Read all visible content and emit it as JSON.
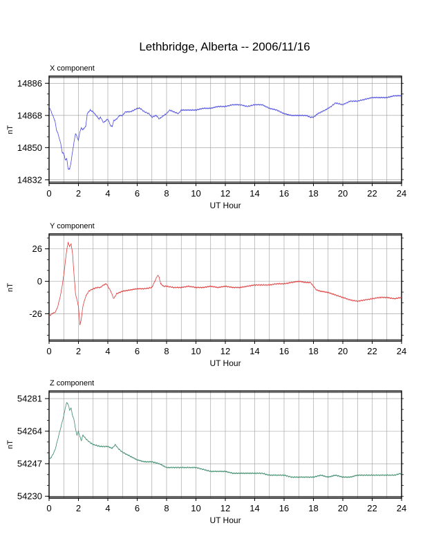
{
  "page": {
    "title": "Lethbridge, Alberta -- 2006/11/16"
  },
  "chart_data": [
    {
      "type": "line",
      "panel_label": "X component",
      "xlabel": "UT Hour",
      "ylabel": "nT",
      "xlim": [
        0,
        24
      ],
      "ylim": [
        14830,
        14890
      ],
      "xticks": [
        0,
        2,
        4,
        6,
        8,
        10,
        12,
        14,
        16,
        18,
        20,
        22,
        24
      ],
      "yticks": [
        14886,
        14868,
        14850,
        14832
      ],
      "grid": true,
      "color": "#4a4ae0",
      "series": [
        {
          "x": [
            0,
            0.2,
            0.4,
            0.5,
            0.6,
            0.8,
            0.9,
            1.0,
            1.1,
            1.2,
            1.3,
            1.4,
            1.5,
            1.6,
            1.7,
            1.8,
            1.9,
            2.0,
            2.1,
            2.2,
            2.3,
            2.5,
            2.6,
            2.8,
            3.0,
            3.2,
            3.4,
            3.5,
            3.7,
            4.0,
            4.2,
            4.3,
            4.4,
            4.6,
            4.8,
            5.0,
            5.2,
            5.5,
            5.8,
            6.0,
            6.2,
            6.5,
            6.8,
            7.0,
            7.3,
            7.5,
            7.8,
            8.0,
            8.2,
            8.5,
            8.8,
            9.0,
            9.5,
            10.0,
            10.5,
            11.0,
            11.5,
            12.0,
            12.5,
            13.0,
            13.5,
            14.0,
            14.5,
            15.0,
            15.5,
            16.0,
            16.5,
            17.0,
            17.5,
            17.8,
            18.0,
            18.3,
            18.8,
            19.2,
            19.5,
            20.0,
            20.5,
            21.0,
            21.5,
            22.0,
            22.5,
            23.0,
            23.5,
            24.0
          ],
          "y": [
            14873,
            14869,
            14865,
            14860,
            14858,
            14852,
            14847,
            14847,
            14843,
            14844,
            14838,
            14838,
            14842,
            14848,
            14853,
            14858,
            14856,
            14854,
            14859,
            14861,
            14860,
            14862,
            14869,
            14871,
            14870,
            14868,
            14866,
            14867,
            14864,
            14866,
            14862,
            14862,
            14865,
            14866,
            14868,
            14868,
            14870,
            14870,
            14871,
            14872,
            14872,
            14870,
            14869,
            14867,
            14868,
            14866,
            14868,
            14869,
            14871,
            14870,
            14869,
            14871,
            14871,
            14871,
            14872,
            14872,
            14873,
            14873,
            14874,
            14874,
            14873,
            14874,
            14874,
            14872,
            14871,
            14869,
            14868,
            14868,
            14868,
            14867,
            14867,
            14869,
            14871,
            14873,
            14875,
            14874,
            14876,
            14876,
            14877,
            14878,
            14878,
            14878,
            14879,
            14879
          ]
        }
      ]
    },
    {
      "type": "line",
      "panel_label": "Y component",
      "xlabel": "UT Hour",
      "ylabel": "nT",
      "xlim": [
        0,
        24
      ],
      "ylim": [
        -48,
        38
      ],
      "xticks": [
        0,
        2,
        4,
        6,
        8,
        10,
        12,
        14,
        16,
        18,
        20,
        22,
        24
      ],
      "yticks": [
        26,
        0,
        -26
      ],
      "grid": true,
      "color": "#e03a3a",
      "series": [
        {
          "x": [
            0,
            0.2,
            0.4,
            0.5,
            0.6,
            0.7,
            0.8,
            0.9,
            1.0,
            1.1,
            1.2,
            1.3,
            1.4,
            1.5,
            1.6,
            1.7,
            1.8,
            1.9,
            2.0,
            2.1,
            2.2,
            2.3,
            2.5,
            2.7,
            3.0,
            3.3,
            3.5,
            3.7,
            3.9,
            4.0,
            4.2,
            4.4,
            4.6,
            4.8,
            5.0,
            5.5,
            6.0,
            6.5,
            7.0,
            7.2,
            7.4,
            7.5,
            7.6,
            7.8,
            8.0,
            8.5,
            9.0,
            9.5,
            10.0,
            10.5,
            11.0,
            11.5,
            12.0,
            12.5,
            13.0,
            13.5,
            14.0,
            14.5,
            15.0,
            15.5,
            16.0,
            16.5,
            17.0,
            17.5,
            17.8,
            18.0,
            18.2,
            18.5,
            19.0,
            19.5,
            20.0,
            20.5,
            21.0,
            21.5,
            22.0,
            22.5,
            23.0,
            23.5,
            24.0
          ],
          "y": [
            -28,
            -26,
            -25,
            -23,
            -20,
            -15,
            -10,
            -3,
            5,
            15,
            25,
            31,
            28,
            30,
            22,
            5,
            -10,
            -15,
            -20,
            -35,
            -30,
            -20,
            -12,
            -8,
            -6,
            -5,
            -5,
            -3,
            -2,
            -4,
            -8,
            -14,
            -10,
            -9,
            -8,
            -7,
            -6,
            -6,
            -5,
            0,
            5,
            3,
            -2,
            -4,
            -4,
            -5,
            -5,
            -4,
            -5,
            -5,
            -4,
            -5,
            -4,
            -5,
            -5,
            -4,
            -3,
            -3,
            -3,
            -2,
            -2,
            -1,
            0,
            -1,
            -1,
            -4,
            -7,
            -8,
            -9,
            -11,
            -13,
            -15,
            -16,
            -15,
            -14,
            -13,
            -13,
            -14,
            -13
          ]
        }
      ]
    },
    {
      "type": "line",
      "panel_label": "Z component",
      "xlabel": "UT Hour",
      "ylabel": "nT",
      "xlim": [
        0,
        24
      ],
      "ylim": [
        54229,
        54285
      ],
      "xticks": [
        0,
        2,
        4,
        6,
        8,
        10,
        12,
        14,
        16,
        18,
        20,
        22,
        24
      ],
      "yticks": [
        54281,
        54264,
        54247,
        54230
      ],
      "grid": true,
      "color": "#3a8a6a",
      "series": [
        {
          "x": [
            0,
            0.2,
            0.4,
            0.6,
            0.8,
            1.0,
            1.1,
            1.2,
            1.3,
            1.4,
            1.5,
            1.6,
            1.7,
            1.8,
            1.9,
            2.0,
            2.1,
            2.2,
            2.3,
            2.5,
            2.8,
            3.0,
            3.5,
            4.0,
            4.3,
            4.5,
            4.7,
            5.0,
            5.5,
            6.0,
            6.5,
            7.0,
            7.5,
            8.0,
            8.5,
            9.0,
            9.5,
            10.0,
            10.5,
            11.0,
            11.5,
            12.0,
            12.5,
            13.0,
            13.5,
            14.0,
            14.5,
            15.0,
            15.5,
            16.0,
            16.5,
            17.0,
            17.5,
            18.0,
            18.5,
            19.0,
            19.5,
            20.0,
            20.5,
            21.0,
            21.5,
            22.0,
            22.5,
            23.0,
            23.5,
            24.0
          ],
          "y": [
            54249,
            54251,
            54254,
            54260,
            54266,
            54272,
            54276,
            54279,
            54278,
            54275,
            54276,
            54272,
            54270,
            54265,
            54262,
            54264,
            54261,
            54259,
            54262,
            54260,
            54258,
            54257,
            54256,
            54256,
            54255,
            54257,
            54255,
            54253,
            54251,
            54249,
            54248,
            54248,
            54247,
            54245,
            54245,
            54245,
            54245,
            54245,
            54244,
            54243,
            54243,
            54243,
            54242,
            54242,
            54242,
            54242,
            54242,
            54241,
            54241,
            54241,
            54240,
            54240,
            54240,
            54240,
            54241,
            54240,
            54241,
            54240,
            54240,
            54241,
            54241,
            54241,
            54241,
            54241,
            54241,
            54242
          ]
        }
      ]
    }
  ]
}
